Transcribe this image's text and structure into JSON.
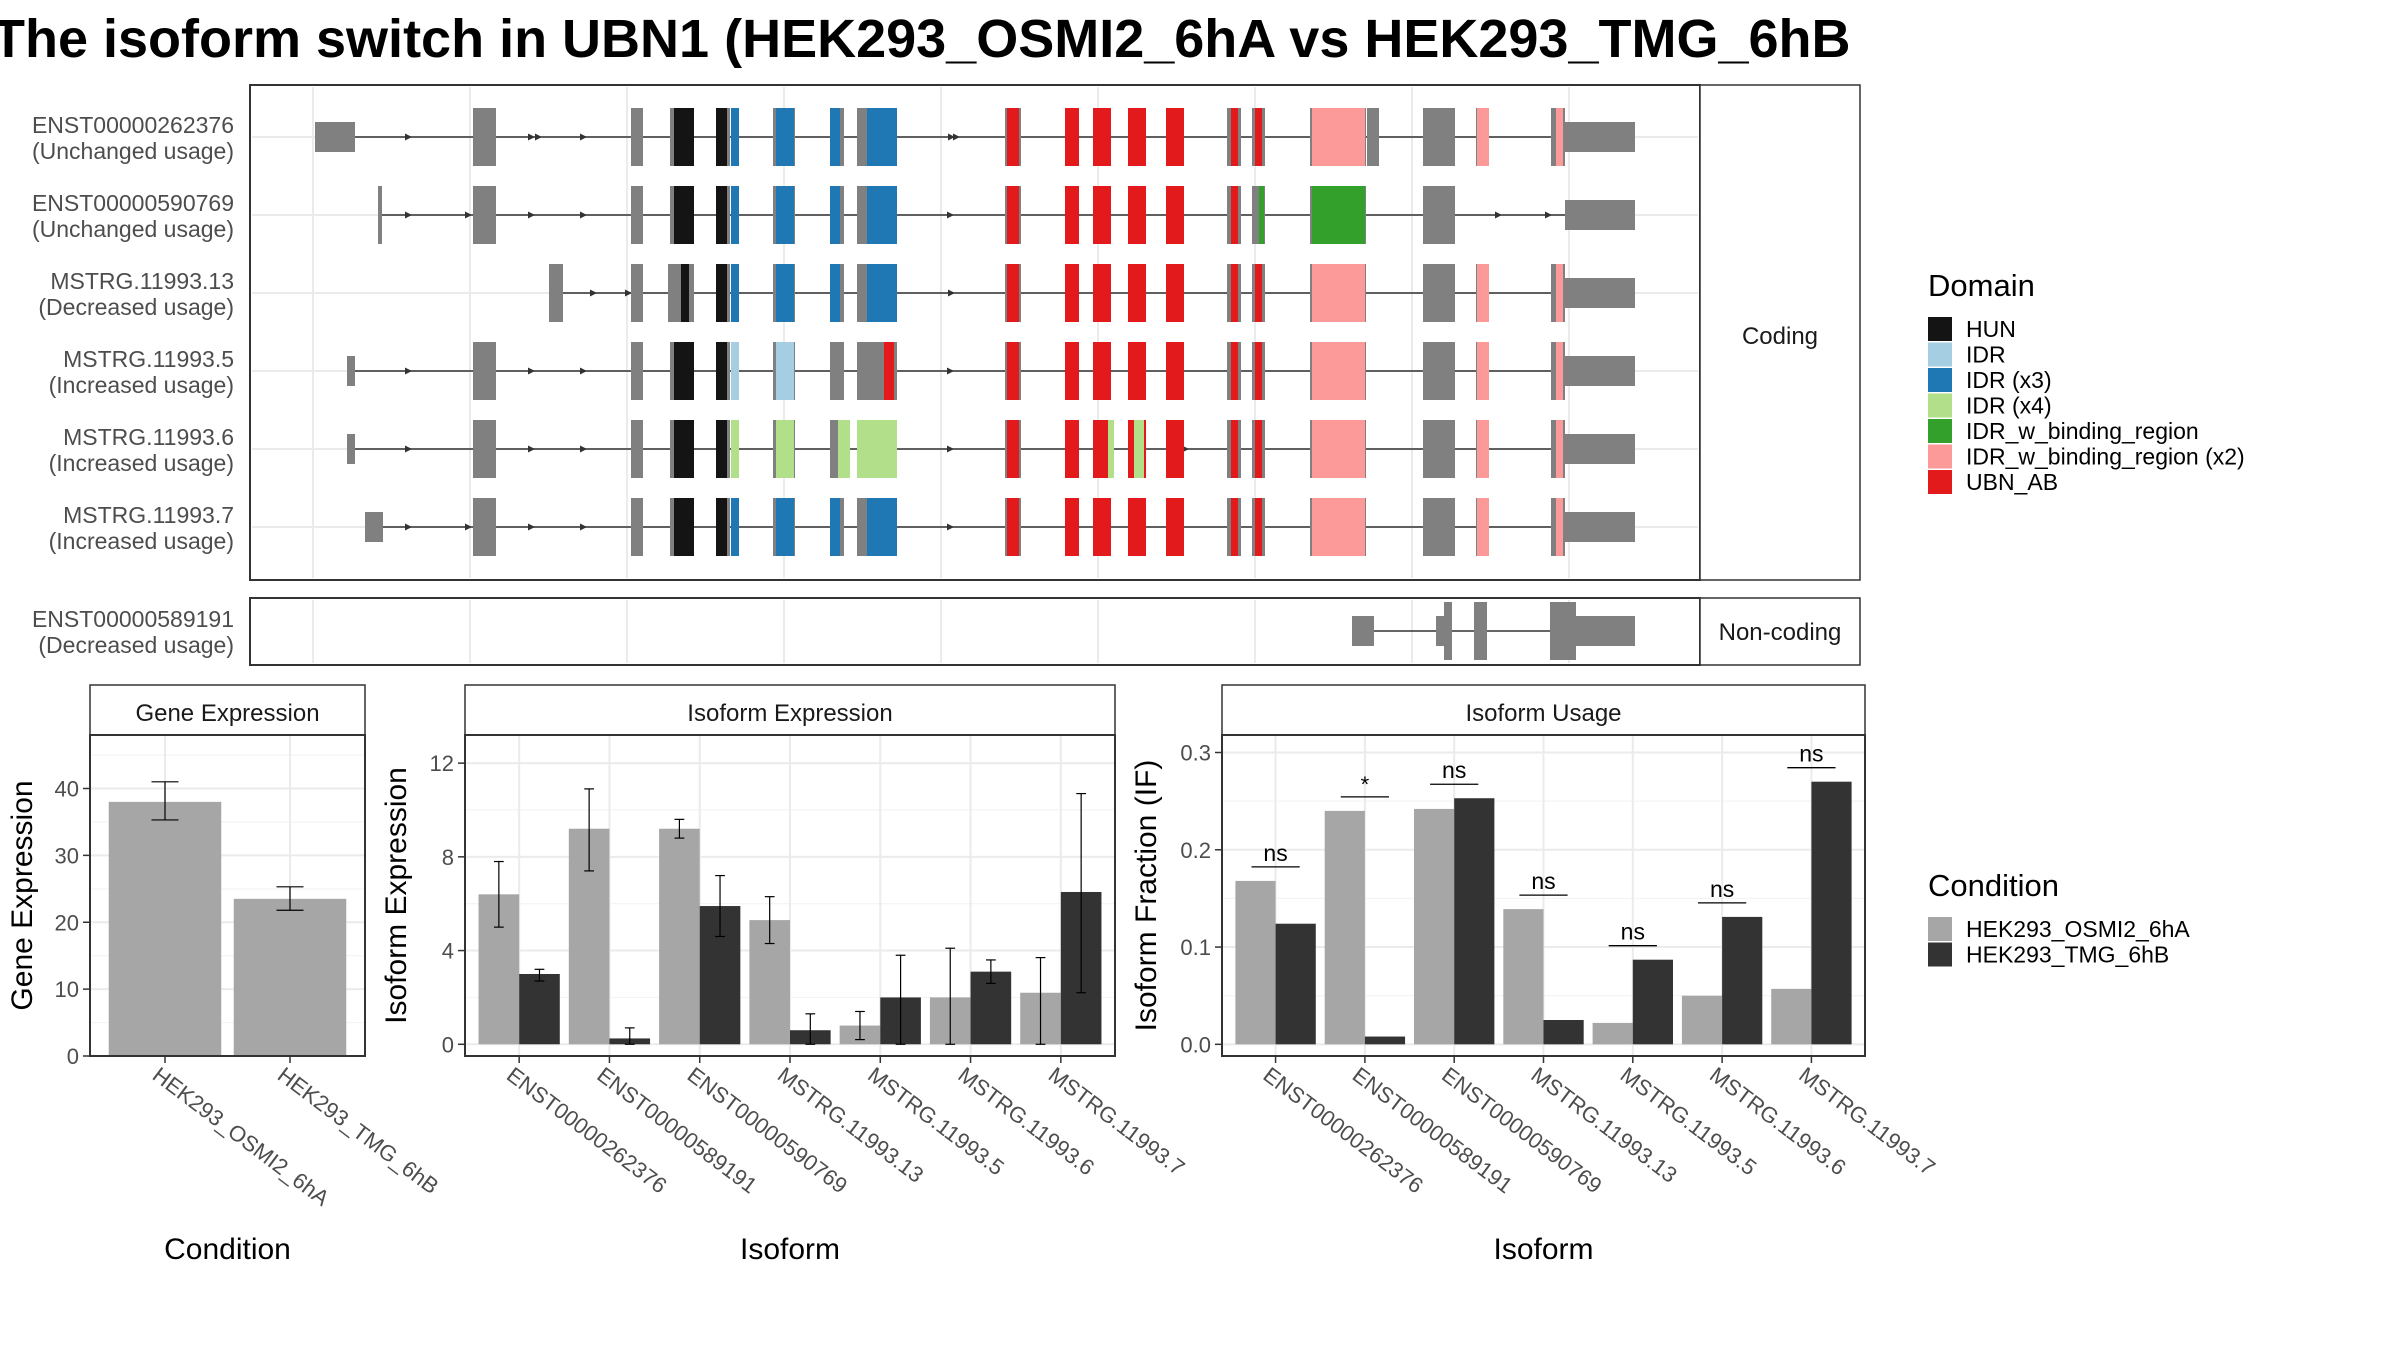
{
  "title": "The isoform switch in UBN1 (HEK293_OSMI2_6hA vs HEK293_TMG_6hB",
  "colors": {
    "exon": "#808080",
    "osmi": "#A6A6A6",
    "tmg": "#333333"
  },
  "structure": {
    "coding_label": "Coding",
    "noncoding_label": "Non-coding",
    "transcripts": [
      {
        "id": "ENST00000262376",
        "usage": "(Unchanged usage)"
      },
      {
        "id": "ENST00000590769",
        "usage": "(Unchanged usage)"
      },
      {
        "id": "MSTRG.11993.13",
        "usage": "(Decreased usage)"
      },
      {
        "id": "MSTRG.11993.5",
        "usage": "(Increased usage)"
      },
      {
        "id": "MSTRG.11993.6",
        "usage": "(Increased usage)"
      },
      {
        "id": "MSTRG.11993.7",
        "usage": "(Increased usage)"
      }
    ],
    "noncoding": {
      "id": "ENST00000589191",
      "usage": "(Decreased usage)"
    }
  },
  "domain_legend": {
    "title": "Domain",
    "items": [
      {
        "label": "HUN",
        "color": "#141414"
      },
      {
        "label": "IDR",
        "color": "#A6CEE3"
      },
      {
        "label": "IDR (x3)",
        "color": "#1F78B4"
      },
      {
        "label": "IDR (x4)",
        "color": "#B2DF8A"
      },
      {
        "label": "IDR_w_binding_region",
        "color": "#33A02C"
      },
      {
        "label": "IDR_w_binding_region (x2)",
        "color": "#FB9A99"
      },
      {
        "label": "UBN_AB",
        "color": "#E31A1C"
      }
    ]
  },
  "condition_legend": {
    "title": "Condition",
    "items": [
      {
        "label": "HEK293_OSMI2_6hA",
        "color": "#A6A6A6"
      },
      {
        "label": "HEK293_TMG_6hB",
        "color": "#333333"
      }
    ]
  },
  "chart_data": [
    {
      "type": "bar",
      "title": "Gene Expression",
      "xlabel": "Condition",
      "ylabel": "Gene Expression",
      "categories": [
        "HEK293_OSMI2_6hA",
        "HEK293_TMG_6hB"
      ],
      "values": [
        38,
        23.5
      ],
      "errors": [
        [
          35.3,
          41
        ],
        [
          21.8,
          25.3
        ]
      ],
      "ylim": [
        0,
        48
      ],
      "yticks": [
        0,
        10,
        20,
        30,
        40
      ],
      "grid": true
    },
    {
      "type": "bar",
      "title": "Isoform Expression",
      "xlabel": "Isoform",
      "ylabel": "Isoform Expression",
      "categories": [
        "ENST00000262376",
        "ENST00000589191",
        "ENST00000590769",
        "MSTRG.11993.13",
        "MSTRG.11993.5",
        "MSTRG.11993.6",
        "MSTRG.11993.7"
      ],
      "series": [
        {
          "name": "HEK293_OSMI2_6hA",
          "values": [
            6.4,
            9.2,
            9.2,
            5.3,
            0.8,
            2.0,
            2.2
          ],
          "errors": [
            [
              5.0,
              7.8
            ],
            [
              7.4,
              10.9
            ],
            [
              8.8,
              9.6
            ],
            [
              4.3,
              6.3
            ],
            [
              0.2,
              1.4
            ],
            [
              0.0,
              4.1
            ],
            [
              0.0,
              3.7
            ]
          ]
        },
        {
          "name": "HEK293_TMG_6hB",
          "values": [
            3.0,
            0.25,
            5.9,
            0.6,
            2.0,
            3.1,
            6.5
          ],
          "errors": [
            [
              2.7,
              3.2
            ],
            [
              0.0,
              0.7
            ],
            [
              4.6,
              7.2
            ],
            [
              0.0,
              1.3
            ],
            [
              0.0,
              3.8
            ],
            [
              2.6,
              3.6
            ],
            [
              2.2,
              10.7
            ]
          ]
        }
      ],
      "ylim": [
        -0.5,
        13.2
      ],
      "yticks": [
        0,
        4,
        8,
        12
      ],
      "grid": true
    },
    {
      "type": "bar",
      "title": "Isoform Usage",
      "xlabel": "Isoform",
      "ylabel": "Isoform Fraction (IF)",
      "categories": [
        "ENST00000262376",
        "ENST00000589191",
        "ENST00000590769",
        "MSTRG.11993.13",
        "MSTRG.11993.5",
        "MSTRG.11993.6",
        "MSTRG.11993.7"
      ],
      "series": [
        {
          "name": "HEK293_OSMI2_6hA",
          "values": [
            0.168,
            0.24,
            0.242,
            0.139,
            0.022,
            0.05,
            0.057
          ]
        },
        {
          "name": "HEK293_TMG_6hB",
          "values": [
            0.124,
            0.008,
            0.253,
            0.025,
            0.087,
            0.131,
            0.27
          ]
        }
      ],
      "significance": [
        "ns",
        "*",
        "ns",
        "ns",
        "ns",
        "ns",
        "ns"
      ],
      "ylim": [
        -0.012,
        0.318
      ],
      "yticks": [
        0.0,
        0.1,
        0.2,
        0.3
      ],
      "ytick_labels": [
        "0.0",
        "0.1",
        "0.2",
        "0.3"
      ],
      "grid": true
    }
  ]
}
